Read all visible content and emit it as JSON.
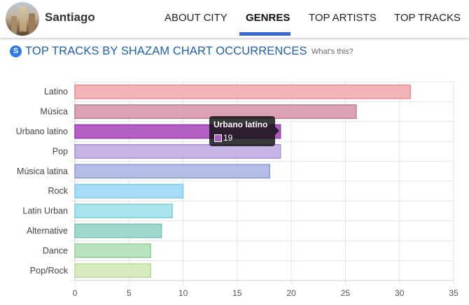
{
  "header": {
    "city_name": "Santiago",
    "tabs": [
      {
        "label": "ABOUT CITY",
        "active": false
      },
      {
        "label": "GENRES",
        "active": true
      },
      {
        "label": "TOP ARTISTS",
        "active": false
      },
      {
        "label": "TOP TRACKS",
        "active": false
      }
    ]
  },
  "section": {
    "title": "TOP TRACKS BY SHAZAM CHART OCCURRENCES",
    "help_link": "What's this?",
    "icon": "shazam-icon"
  },
  "tooltip": {
    "title": "Urbano latino",
    "value": "19",
    "color": "#b35ec4"
  },
  "chart_data": {
    "type": "bar",
    "orientation": "horizontal",
    "categories": [
      "Latino",
      "Música",
      "Urbano latino",
      "Pop",
      "Música latina",
      "Rock",
      "Latin Urban",
      "Alternative",
      "Dance",
      "Pop/Rock"
    ],
    "values": [
      31,
      26,
      19,
      19,
      18,
      10,
      9,
      8,
      7,
      7
    ],
    "colors": [
      "#f4b3b6",
      "#dba1b5",
      "#b35ec4",
      "#c7b3e6",
      "#b3bde6",
      "#a6dcf7",
      "#a8e4ec",
      "#a0d8d0",
      "#b9e3be",
      "#d6ecbe"
    ],
    "border_colors": [
      "#e58e93",
      "#c27e97",
      "#9a3fae",
      "#a991d4",
      "#8f9bd2",
      "#7fc8ee",
      "#7fd0dc",
      "#75c2b7",
      "#92cf99",
      "#b8da96"
    ],
    "x_ticks": [
      0,
      5,
      10,
      15,
      20,
      25,
      30,
      35
    ],
    "xlim": [
      0,
      35
    ],
    "grid": true,
    "highlighted": "Urbano latino"
  }
}
